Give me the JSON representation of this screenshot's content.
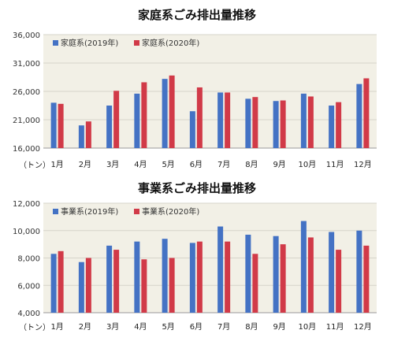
{
  "colors": {
    "series_2019": "#4472c4",
    "series_2020": "#d13a48",
    "plot_bg": "#f2f0e6",
    "grid": "#d6d4ca"
  },
  "unit_label": "（トン）",
  "chart_data": [
    {
      "type": "bar",
      "title": "家庭系ごみ排出量推移",
      "categories": [
        "1月",
        "2月",
        "3月",
        "4月",
        "5月",
        "6月",
        "7月",
        "8月",
        "9月",
        "10月",
        "11月",
        "12月"
      ],
      "ylim": [
        16000,
        36000
      ],
      "yticks": [
        16000,
        21000,
        26000,
        31000,
        36000
      ],
      "ytick_labels": [
        "16,000",
        "21,000",
        "26,000",
        "31,000",
        "36,000"
      ],
      "grid": true,
      "legend_position": "top-left",
      "series": [
        {
          "name": "家庭系(2019年)",
          "values": [
            24000,
            20000,
            23500,
            25600,
            28200,
            22500,
            25800,
            24700,
            24300,
            25600,
            23500,
            27300
          ]
        },
        {
          "name": "家庭系(2020年)",
          "values": [
            23800,
            20700,
            26100,
            27600,
            28800,
            26700,
            25800,
            25000,
            24400,
            25100,
            24100,
            28300
          ]
        }
      ]
    },
    {
      "type": "bar",
      "title": "事業系ごみ排出量推移",
      "categories": [
        "1月",
        "2月",
        "3月",
        "4月",
        "5月",
        "6月",
        "7月",
        "8月",
        "9月",
        "10月",
        "11月",
        "12月"
      ],
      "ylim": [
        4000,
        12000
      ],
      "yticks": [
        4000,
        6000,
        8000,
        10000,
        12000
      ],
      "ytick_labels": [
        "4,000",
        "6,000",
        "8,000",
        "10,000",
        "12,000"
      ],
      "grid": true,
      "legend_position": "top-left",
      "series": [
        {
          "name": "事業系(2019年)",
          "values": [
            8300,
            7700,
            8900,
            9200,
            9400,
            9100,
            10300,
            9700,
            9600,
            10700,
            9900,
            10000
          ]
        },
        {
          "name": "事業系(2020年)",
          "values": [
            8500,
            8000,
            8600,
            7900,
            8000,
            9200,
            9200,
            8300,
            9000,
            9500,
            8600,
            8900
          ]
        }
      ]
    }
  ]
}
